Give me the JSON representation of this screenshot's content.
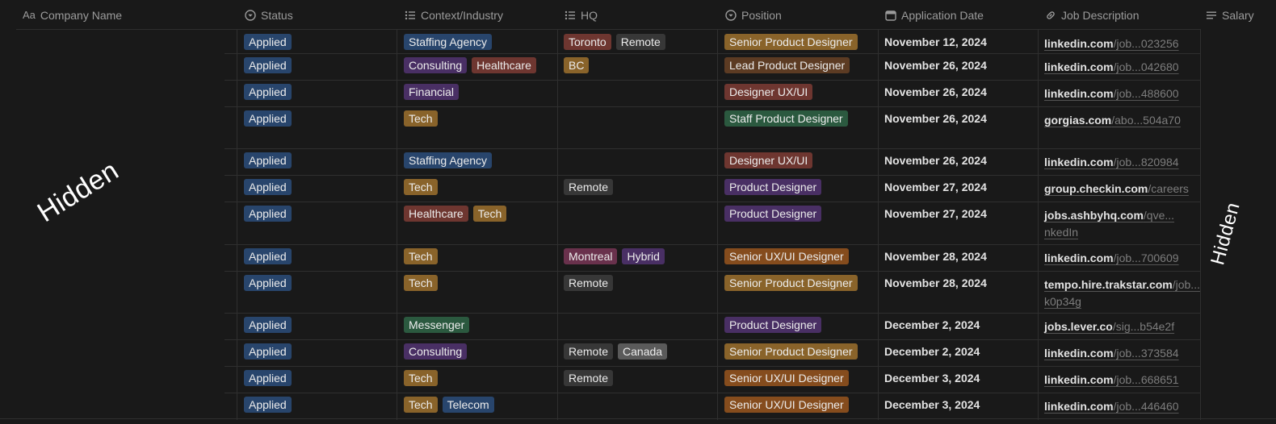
{
  "columns": {
    "company": "Company Name",
    "company_prefix": "Aa",
    "status": "Status",
    "context": "Context/Industry",
    "hq": "HQ",
    "position": "Position",
    "application_date": "Application Date",
    "job_description": "Job Description",
    "salary": "Salary"
  },
  "overlays": {
    "left": "Hidden",
    "right": "Hidden"
  },
  "tag_colors": {
    "blue": "#28456c",
    "purple": "#492f64",
    "red": "#6e3630",
    "brown": "#5c3b23",
    "yellow": "#89632a",
    "orange": "#854c1d",
    "green": "#2b593f",
    "gray": "#373737"
  },
  "rows": [
    {
      "status": "Applied",
      "context": [
        "Staffing Agency"
      ],
      "hq": [
        "Toronto",
        "Remote"
      ],
      "position": "Senior Product Designer",
      "date": "November 12, 2024",
      "job": {
        "base": "linkedin.com",
        "rest": "/job...023256",
        "base2": "",
        "rest2": ""
      }
    },
    {
      "status": "Applied",
      "context": [
        "Consulting",
        "Healthcare"
      ],
      "hq": [
        "BC"
      ],
      "position": "Lead Product Designer",
      "date": "November 26, 2024",
      "job": {
        "base": "linkedin.com",
        "rest": "/job...042680",
        "base2": "",
        "rest2": ""
      }
    },
    {
      "status": "Applied",
      "context": [
        "Financial"
      ],
      "hq": [],
      "position": "Designer UX/UI",
      "date": "November 26, 2024",
      "job": {
        "base": "linkedin.com",
        "rest": "/job...488600",
        "base2": "",
        "rest2": ""
      }
    },
    {
      "status": "Applied",
      "context": [
        "Tech"
      ],
      "hq": [],
      "position": "Staff Product Designer",
      "date": "November 26, 2024",
      "job": {
        "base": "gorgias.com",
        "rest": "/abo...504a70",
        "base2": "",
        "rest2": ""
      }
    },
    {
      "status": "Applied",
      "context": [
        "Staffing Agency"
      ],
      "hq": [],
      "position": "Designer UX/UI",
      "date": "November 26, 2024",
      "job": {
        "base": "linkedin.com",
        "rest": "/job...820984",
        "base2": "",
        "rest2": ""
      }
    },
    {
      "status": "Applied",
      "context": [
        "Tech"
      ],
      "hq": [
        "Remote"
      ],
      "position": "Product Designer",
      "date": "November 27, 2024",
      "job": {
        "base": "group.checkin.com",
        "rest": "/careers",
        "base2": "",
        "rest2": ""
      }
    },
    {
      "status": "Applied",
      "context": [
        "Healthcare",
        "Tech"
      ],
      "hq": [],
      "position": "Product Designer",
      "date": "November 27, 2024",
      "job": {
        "base": "jobs.ashbyhq.com",
        "rest": "/qve...",
        "base2": "",
        "rest2": "nkedIn"
      }
    },
    {
      "status": "Applied",
      "context": [
        "Tech"
      ],
      "hq": [
        "Montreal",
        "Hybrid"
      ],
      "position": "Senior UX/UI Designer",
      "date": "November 28, 2024",
      "job": {
        "base": "linkedin.com",
        "rest": "/job...700609",
        "base2": "",
        "rest2": ""
      }
    },
    {
      "status": "Applied",
      "context": [
        "Tech"
      ],
      "hq": [
        "Remote"
      ],
      "position": "Senior Product Designer",
      "date": "November 28, 2024",
      "job": {
        "base": "tempo.hire.trakstar.com",
        "rest": "/job...",
        "base2": "",
        "rest2": "k0p34g"
      }
    },
    {
      "status": "Applied",
      "context": [
        "Messenger"
      ],
      "hq": [],
      "position": "Product Designer",
      "date": "December 2, 2024",
      "job": {
        "base": "jobs.lever.co",
        "rest": "/sig...b54e2f",
        "base2": "",
        "rest2": ""
      }
    },
    {
      "status": "Applied",
      "context": [
        "Consulting"
      ],
      "hq": [
        "Remote",
        "Canada"
      ],
      "position": "Senior Product Designer",
      "date": "December 2, 2024",
      "job": {
        "base": "linkedin.com",
        "rest": "/job...373584",
        "base2": "",
        "rest2": ""
      }
    },
    {
      "status": "Applied",
      "context": [
        "Tech"
      ],
      "hq": [
        "Remote"
      ],
      "position": "Senior UX/UI Designer",
      "date": "December 3, 2024",
      "job": {
        "base": "linkedin.com",
        "rest": "/job...668651",
        "base2": "",
        "rest2": ""
      }
    },
    {
      "status": "Applied",
      "context": [
        "Tech",
        "Telecom"
      ],
      "hq": [],
      "position": "Senior UX/UI Designer",
      "date": "December 3, 2024",
      "job": {
        "base": "linkedin.com",
        "rest": "/job...446460",
        "base2": "",
        "rest2": ""
      }
    }
  ]
}
